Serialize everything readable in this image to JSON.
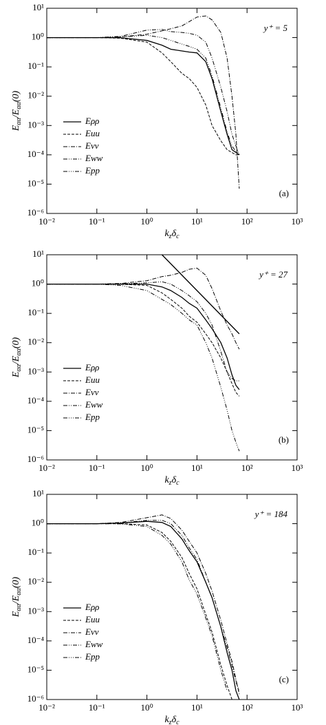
{
  "chart_data": [
    {
      "type": "line",
      "panel_label": "(a)",
      "annotation": "y⁺ = 5",
      "xlabel": [
        "k",
        "z",
        "δ",
        "c"
      ],
      "ylabel": [
        "E",
        "αα",
        "/E",
        "αα",
        "(0)"
      ],
      "log_x": true,
      "log_y": true,
      "xlim": [
        0.01,
        1000
      ],
      "ylim": [
        1e-06,
        10
      ],
      "legend": "lower left",
      "xticks": [
        {
          "value": 0.01,
          "label": "10⁻²"
        },
        {
          "value": 0.1,
          "label": "10⁻¹"
        },
        {
          "value": 1,
          "label": "10⁰"
        },
        {
          "value": 10,
          "label": "10¹"
        },
        {
          "value": 100,
          "label": "10²"
        },
        {
          "value": 1000,
          "label": "10³"
        }
      ],
      "yticks": [
        {
          "value": 1e-06,
          "label": "10⁻⁶"
        },
        {
          "value": 1e-05,
          "label": "10⁻⁵"
        },
        {
          "value": 0.0001,
          "label": "10⁻⁴"
        },
        {
          "value": 0.001,
          "label": "10⁻³"
        },
        {
          "value": 0.01,
          "label": "10⁻²"
        },
        {
          "value": 0.1,
          "label": "10⁻¹"
        },
        {
          "value": 1,
          "label": "10⁰"
        },
        {
          "value": 10,
          "label": "10¹"
        }
      ],
      "x": [
        0.01,
        0.1,
        0.3,
        1,
        2,
        3,
        5,
        7,
        10,
        15,
        20,
        30,
        40,
        50,
        60,
        70
      ],
      "series": [
        {
          "name": "Eρρ",
          "color": "#000000",
          "dash": "solid",
          "values": [
            1,
            1,
            0.98,
            0.8,
            0.55,
            0.4,
            0.35,
            0.32,
            0.3,
            0.15,
            0.04,
            0.003,
            0.0005,
            0.00015,
            0.00012,
            0.0001
          ]
        },
        {
          "name": "Euu",
          "color": "#000000",
          "dash": "dashed",
          "values": [
            1,
            1,
            0.95,
            0.7,
            0.3,
            0.15,
            0.06,
            0.04,
            0.02,
            0.005,
            0.001,
            0.0003,
            0.00015,
            0.00012,
            0.0001,
            0.0001
          ]
        },
        {
          "name": "Evv",
          "color": "#000000",
          "dash": "dashdot",
          "values": [
            1,
            1,
            1.05,
            1.3,
            1.7,
            2,
            2.5,
            3.5,
            5,
            5.5,
            4,
            1.5,
            0.2,
            0.01,
            0.0005,
            7e-06
          ]
        },
        {
          "name": "Eww",
          "color": "#000000",
          "dash": "dashdotdot",
          "values": [
            1,
            1,
            1.1,
            1.8,
            1.9,
            1.6,
            1.5,
            1.4,
            1.2,
            0.7,
            0.2,
            0.02,
            0.003,
            0.0005,
            0.0002,
            0.0001
          ]
        },
        {
          "name": "Epp",
          "color": "#000000",
          "dash": "dashdotdotdot",
          "values": [
            1,
            1,
            1.05,
            1.2,
            1,
            0.8,
            0.6,
            0.5,
            0.4,
            0.2,
            0.05,
            0.004,
            0.0006,
            0.0002,
            0.00013,
            0.0001
          ]
        }
      ]
    },
    {
      "type": "line",
      "panel_label": "(b)",
      "annotation": "y⁺ = 27",
      "xlabel": [
        "k",
        "z",
        "δ",
        "c"
      ],
      "ylabel": [
        "E",
        "αα",
        "/E",
        "αα",
        "(0)"
      ],
      "log_x": true,
      "log_y": true,
      "xlim": [
        0.01,
        1000
      ],
      "ylim": [
        1e-06,
        10
      ],
      "legend": "lower left",
      "xticks": [
        {
          "value": 0.01,
          "label": "10⁻²"
        },
        {
          "value": 0.1,
          "label": "10⁻¹"
        },
        {
          "value": 1,
          "label": "10⁰"
        },
        {
          "value": 10,
          "label": "10¹"
        },
        {
          "value": 100,
          "label": "10²"
        },
        {
          "value": 1000,
          "label": "10³"
        }
      ],
      "yticks": [
        {
          "value": 1e-06,
          "label": "10⁻⁶"
        },
        {
          "value": 1e-05,
          "label": "10⁻⁵"
        },
        {
          "value": 0.0001,
          "label": "10⁻⁴"
        },
        {
          "value": 0.001,
          "label": "10⁻³"
        },
        {
          "value": 0.01,
          "label": "10⁻²"
        },
        {
          "value": 0.1,
          "label": "10⁻¹"
        },
        {
          "value": 1,
          "label": "10⁰"
        },
        {
          "value": 10,
          "label": "10¹"
        }
      ],
      "x": [
        0.01,
        0.1,
        0.3,
        1,
        2,
        3,
        5,
        7,
        10,
        15,
        20,
        30,
        40,
        50,
        60,
        70
      ],
      "series": [
        {
          "name": "Eρρ",
          "color": "#000000",
          "dash": "solid",
          "values": [
            1,
            1,
            1,
            1,
            0.8,
            0.6,
            0.35,
            0.22,
            0.15,
            0.06,
            0.03,
            0.01,
            0.003,
            0.0008,
            0.00035,
            0.00025
          ]
        },
        {
          "name": "Euu",
          "color": "#000000",
          "dash": "dashed",
          "values": [
            1,
            1,
            0.98,
            0.9,
            0.5,
            0.3,
            0.15,
            0.08,
            0.05,
            0.02,
            0.01,
            0.003,
            0.001,
            0.0004,
            0.0002,
            0.00015
          ]
        },
        {
          "name": "Evv",
          "color": "#000000",
          "dash": "dashdot",
          "values": [
            1,
            1,
            1.05,
            1.3,
            1.8,
            2,
            2.5,
            3.2,
            3.5,
            2,
            0.7,
            0.12,
            0.04,
            0.02,
            0.01,
            0.006
          ]
        },
        {
          "name": "Eww",
          "color": "#000000",
          "dash": "dashdotdot",
          "values": [
            1,
            1,
            1.02,
            1.1,
            1.2,
            1,
            0.6,
            0.4,
            0.25,
            0.1,
            0.04,
            0.005,
            0.001,
            0.0006,
            0.0005,
            0.0005
          ]
        },
        {
          "name": "Epp",
          "color": "#000000",
          "dash": "dashdotdotdot",
          "values": [
            1,
            1,
            0.9,
            0.6,
            0.3,
            0.2,
            0.1,
            0.06,
            0.04,
            0.01,
            0.003,
            0.0003,
            5e-05,
            1e-05,
            4e-06,
            2e-06
          ]
        }
      ],
      "reference_line": {
        "color": "#000000",
        "x": [
          2,
          70
        ],
        "values": [
          10,
          0.02
        ]
      }
    },
    {
      "type": "line",
      "panel_label": "(c)",
      "annotation": "y⁺ = 184",
      "xlabel": [
        "k",
        "z",
        "δ",
        "c"
      ],
      "ylabel": [
        "E",
        "αα",
        "/E",
        "αα",
        "(0)"
      ],
      "log_x": true,
      "log_y": true,
      "xlim": [
        0.01,
        1000
      ],
      "ylim": [
        1e-06,
        10
      ],
      "legend": "lower left",
      "xticks": [
        {
          "value": 0.01,
          "label": "10⁻²"
        },
        {
          "value": 0.1,
          "label": "10⁻¹"
        },
        {
          "value": 1,
          "label": "10⁰"
        },
        {
          "value": 10,
          "label": "10¹"
        },
        {
          "value": 100,
          "label": "10²"
        },
        {
          "value": 1000,
          "label": "10³"
        }
      ],
      "yticks": [
        {
          "value": 1e-06,
          "label": "10⁻⁶"
        },
        {
          "value": 1e-05,
          "label": "10⁻⁵"
        },
        {
          "value": 0.0001,
          "label": "10⁻⁴"
        },
        {
          "value": 0.001,
          "label": "10⁻³"
        },
        {
          "value": 0.01,
          "label": "10⁻²"
        },
        {
          "value": 0.1,
          "label": "10⁻¹"
        },
        {
          "value": 1,
          "label": "10⁰"
        },
        {
          "value": 10,
          "label": "10¹"
        }
      ],
      "x": [
        0.01,
        0.1,
        0.3,
        1,
        2,
        3,
        5,
        7,
        10,
        15,
        20,
        30,
        40,
        50,
        60,
        70
      ],
      "series": [
        {
          "name": "Eρρ",
          "color": "#000000",
          "dash": "solid",
          "values": [
            1,
            1,
            1.05,
            1.2,
            1.1,
            0.8,
            0.3,
            0.12,
            0.05,
            0.01,
            0.003,
            0.0003,
            4e-05,
            1e-05,
            2e-06,
            1e-06
          ]
        },
        {
          "name": "Euu",
          "color": "#000000",
          "dash": "dashed",
          "values": [
            1,
            1,
            1,
            0.9,
            0.5,
            0.25,
            0.07,
            0.02,
            0.006,
            0.0008,
            0.0002,
            1.5e-05,
            3e-06,
            1e-06,
            null,
            null
          ]
        },
        {
          "name": "Evv",
          "color": "#000000",
          "dash": "dashdot",
          "values": [
            1,
            1,
            1.1,
            1.6,
            2,
            1.5,
            0.6,
            0.25,
            0.1,
            0.02,
            0.005,
            0.0005,
            8e-05,
            2e-05,
            5e-06,
            1.5e-06
          ]
        },
        {
          "name": "Eww",
          "color": "#000000",
          "dash": "dashdotdot",
          "values": [
            1,
            1,
            1.05,
            1.3,
            1.3,
            1,
            0.4,
            0.15,
            0.06,
            0.01,
            0.003,
            0.0003,
            6e-05,
            1.5e-05,
            4e-06,
            2e-06
          ]
        },
        {
          "name": "Epp",
          "color": "#000000",
          "dash": "dashdotdotdot",
          "values": [
            1,
            1,
            0.98,
            0.8,
            0.4,
            0.2,
            0.05,
            0.012,
            0.004,
            0.0006,
            0.00015,
            1e-05,
            2e-06,
            null,
            null,
            null
          ]
        }
      ]
    }
  ]
}
